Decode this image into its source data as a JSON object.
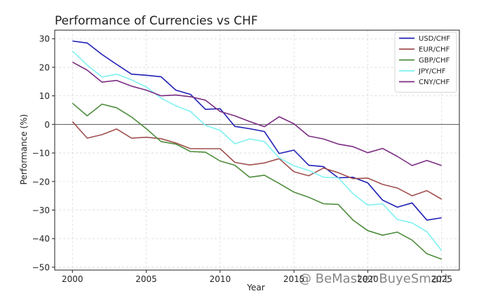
{
  "chart_data": {
    "type": "line",
    "title": "Performance of Currencies vs CHF",
    "xlabel": "Year",
    "ylabel": "Performance (%)",
    "xlim": [
      1998.8,
      2026.2
    ],
    "ylim": [
      -51,
      33
    ],
    "xticks": [
      2000,
      2005,
      2010,
      2015,
      2020,
      2025
    ],
    "xtick_labels": [
      "2000",
      "2005",
      "2010",
      "2015",
      "2020",
      "2025"
    ],
    "yticks": [
      -50,
      -40,
      -30,
      -20,
      -10,
      0,
      10,
      20,
      30
    ],
    "ytick_labels": [
      "−50",
      "−40",
      "−30",
      "−20",
      "−10",
      "0",
      "10",
      "20",
      "30"
    ],
    "grid": true,
    "reference_line_y": 0,
    "legend_position": "top-right",
    "x": [
      2000,
      2001,
      2002,
      2003,
      2004,
      2005,
      2006,
      2007,
      2008,
      2009,
      2010,
      2011,
      2012,
      2013,
      2014,
      2015,
      2016,
      2017,
      2018,
      2019,
      2020,
      2021,
      2022,
      2023,
      2024,
      2025
    ],
    "series": [
      {
        "name": "USD/CHF",
        "color": "#1f1fb4",
        "values": [
          29.2,
          28.5,
          24.5,
          21.0,
          17.6,
          17.2,
          16.7,
          12.0,
          10.5,
          5.3,
          5.5,
          -0.7,
          -1.5,
          -2.5,
          -10.2,
          -9.0,
          -14.3,
          -14.8,
          -18.7,
          -18.5,
          -20.5,
          -26.5,
          -29.0,
          -27.5,
          -33.5,
          -32.7
        ]
      },
      {
        "name": "EUR/CHF",
        "color": "#a0504f",
        "values": [
          1.0,
          -4.8,
          -3.6,
          -1.6,
          -4.8,
          -4.5,
          -5.0,
          -6.5,
          -8.5,
          -8.5,
          -8.5,
          -13.3,
          -14.2,
          -13.5,
          -12.0,
          -16.6,
          -18.0,
          -15.3,
          -16.9,
          -19.0,
          -18.8,
          -21.0,
          -22.3,
          -25.0,
          -23.2,
          -26.2
        ]
      },
      {
        "name": "GBP/CHF",
        "color": "#4d8c3c",
        "values": [
          7.4,
          3.0,
          7.1,
          5.8,
          2.6,
          -1.5,
          -6.0,
          -6.9,
          -9.5,
          -9.7,
          -12.8,
          -14.3,
          -18.5,
          -17.8,
          -20.7,
          -23.7,
          -25.5,
          -27.8,
          -28.0,
          -33.5,
          -37.2,
          -38.8,
          -37.7,
          -40.5,
          -45.3,
          -47.2
        ]
      },
      {
        "name": "JPY/CHF",
        "color": "#7ff1f1",
        "values": [
          25.7,
          20.8,
          16.6,
          17.6,
          15.6,
          13.1,
          9.2,
          6.5,
          4.5,
          -0.3,
          -2.1,
          -6.8,
          -5.1,
          -6.0,
          -11.7,
          -14.5,
          -16.1,
          -18.5,
          -18.7,
          -24.3,
          -28.3,
          -27.8,
          -33.3,
          -34.5,
          -37.6,
          -44.2
        ]
      },
      {
        "name": "CNY/CHF",
        "color": "#7b2c83",
        "values": [
          21.8,
          19.0,
          14.8,
          15.4,
          13.4,
          12.0,
          10.0,
          10.3,
          9.7,
          8.5,
          4.5,
          3.0,
          1.0,
          -0.8,
          2.7,
          0.2,
          -4.1,
          -5.1,
          -6.9,
          -7.8,
          -9.9,
          -8.4,
          -11.2,
          -14.4,
          -12.6,
          -14.4
        ]
      }
    ]
  },
  "watermark": "@ BeMaster BuyeSmart"
}
